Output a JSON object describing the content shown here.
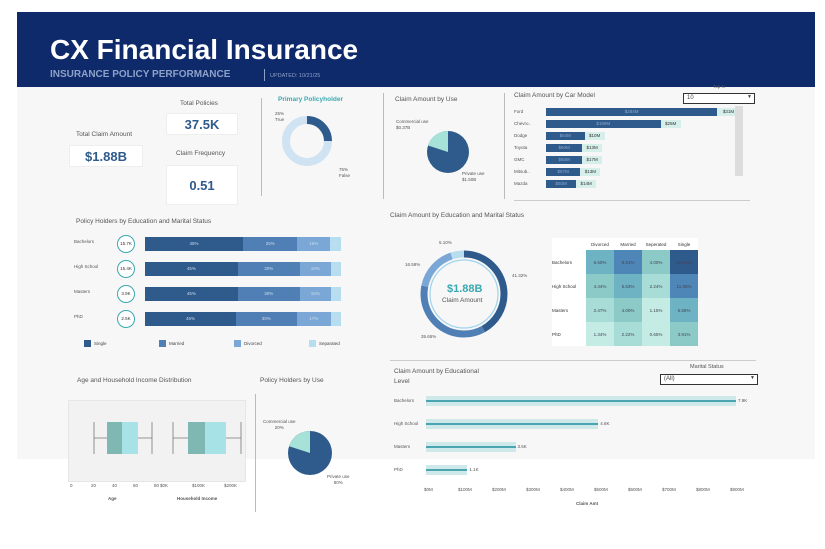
{
  "header": {
    "title": "CX Financial Insurance",
    "subtitle": "INSURANCE POLICY PERFORMANCE",
    "updated": "UPDATED: 10/21/25"
  },
  "kpis": {
    "total_claim_label": "Total Claim Amount",
    "total_claim_value": "$1.88B",
    "total_policies_label": "Total Policies",
    "total_policies_value": "37.5K",
    "claim_freq_label": "Claim Frequency",
    "claim_freq_value": "0.51"
  },
  "primary_policyholder": {
    "title": "Primary Policyholder",
    "true_label": "25%\nTrue",
    "false_label": "75%\nFalse",
    "true_pct": 25,
    "false_pct": 75
  },
  "claim_by_use": {
    "title": "Claim Amount by Use",
    "commercial_label": "Commercial use\n$0.37B",
    "private_label": "Private use\n$1.50B",
    "commercial_pct": 20
  },
  "car_model": {
    "title": "Claim Amount by Car Model",
    "topn_label": "Top N",
    "topn_value": "10",
    "rows": [
      {
        "model": "Ford",
        "inner": "$284M",
        "value": 284,
        "ext": "$31M",
        "ext_value": 31
      },
      {
        "model": "Chevro..",
        "inner": "$190M",
        "value": 190,
        "ext": "$25M",
        "ext_value": 25
      },
      {
        "model": "Dodge",
        "inner": "$64M",
        "value": 64,
        "ext": "$10M",
        "ext_value": 10
      },
      {
        "model": "Toyota",
        "inner": "$60M",
        "value": 60,
        "ext": "$13M",
        "ext_value": 13
      },
      {
        "model": "GMC",
        "inner": "$60M",
        "value": 60,
        "ext": "$17M",
        "ext_value": 17
      },
      {
        "model": "Mitsub..",
        "inner": "$57M",
        "value": 57,
        "ext": "$13M",
        "ext_value": 13
      },
      {
        "model": "Mazda",
        "inner": "$50M",
        "value": 50,
        "ext": "$14M",
        "ext_value": 14
      }
    ]
  },
  "education_marital": {
    "title": "Policy Holders by Education  and Marital Status",
    "rows": [
      {
        "edu": "Bachelors",
        "count": "15.7K",
        "single": "45%",
        "married": "25%",
        "divorced": "15%",
        "separated": "5%",
        "single_v": 45,
        "married_v": 25,
        "divorced_v": 15,
        "separated_v": 5
      },
      {
        "edu": "High School",
        "count": "15.4K",
        "single": "45%",
        "married": "30%",
        "divorced": "15%",
        "separated": "5%",
        "single_v": 45,
        "married_v": 30,
        "divorced_v": 15,
        "separated_v": 5
      },
      {
        "edu": "Masters",
        "count": "3.9K",
        "single": "45%",
        "married": "30%",
        "divorced": "15%",
        "separated": "5%",
        "single_v": 45,
        "married_v": 30,
        "divorced_v": 15,
        "separated_v": 5
      },
      {
        "edu": "PhD",
        "count": "2.5K",
        "single": "45%",
        "married": "30%",
        "divorced": "17%",
        "separated": "5%",
        "single_v": 45,
        "married_v": 30,
        "divorced_v": 17,
        "separated_v": 5
      }
    ],
    "legend": [
      "Single",
      "Married",
      "Divorced",
      "Separated"
    ]
  },
  "claim_edu_marital": {
    "title": "Claim Amount by Education and Marital Status",
    "center_value": "$1.88B",
    "center_label": "Claim Amount",
    "donut_labels": {
      "a": "5.10%",
      "b": "16.59%",
      "c": "41.32%",
      "d": "35.65%"
    },
    "donut_values": [
      41.32,
      35.65,
      16.59,
      5.1
    ],
    "heatmap": {
      "cols": [
        "Divorced",
        "Married",
        "Seperated",
        "Single"
      ],
      "rows": [
        {
          "label": "Bachelors",
          "cells": [
            "6.60%",
            "9.91%",
            "4.00%",
            "20.82%"
          ]
        },
        {
          "label": "High School",
          "cells": [
            "4.44%",
            "5.63%",
            "2.24%",
            "11.05%"
          ]
        },
        {
          "label": "Masters",
          "cells": [
            "2.47%",
            "4.00%",
            "1.15%",
            "6.55%"
          ]
        },
        {
          "label": "PhD",
          "cells": [
            "1.34%",
            "2.22%",
            "0.65%",
            "3.91%"
          ]
        }
      ]
    }
  },
  "age_income": {
    "title": "Age and Household Income Distribution",
    "age_ticks": [
      "0",
      "20",
      "40",
      "60",
      "80"
    ],
    "age_label": "Age",
    "income_ticks": [
      "$0K",
      "$100K",
      "$200K"
    ],
    "income_label": "Household Income"
  },
  "policy_by_use": {
    "title": "Policy Holders by Use",
    "commercial_label": "Commercial use\n20%",
    "private_label": "Private use\n80%",
    "commercial_pct": 20
  },
  "claim_by_edu": {
    "title": "Claim Amount by Educational Level",
    "marital_label": "Marital Status",
    "marital_value": "(All)",
    "xlabel": "Claim Amt",
    "ticks": [
      "$0M",
      "$100M",
      "$200M",
      "$300M",
      "$400M",
      "$500M",
      "$600M",
      "$700M",
      "$800M",
      "$900M"
    ],
    "rows": [
      {
        "edu": "Bachelors",
        "label": "7.9K",
        "value": 900
      },
      {
        "edu": "High School",
        "label": "4.6K",
        "value": 500
      },
      {
        "edu": "Masters",
        "label": "3.5K",
        "value": 260
      },
      {
        "edu": "PhD",
        "label": "1.1K",
        "value": 120
      }
    ]
  },
  "colors": {
    "navy": "#0f2a6b",
    "single": "#2e5a8c",
    "married": "#4f7fb5",
    "divorced": "#7aa7d6",
    "separated": "#b7ddf0",
    "teal": "#9ed8d8"
  }
}
